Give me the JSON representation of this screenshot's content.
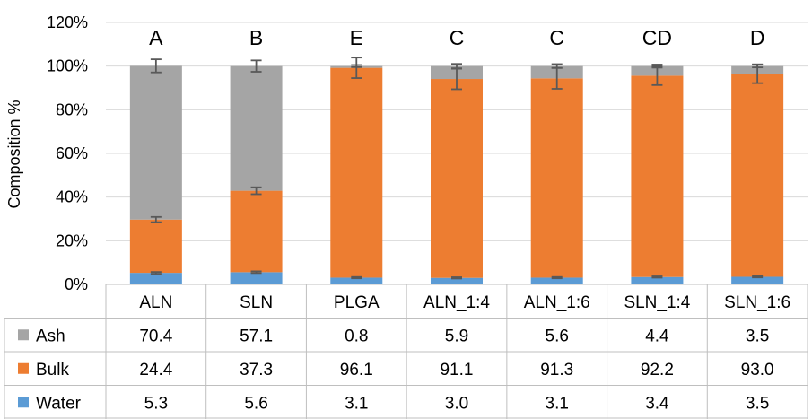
{
  "chart_data": {
    "type": "bar",
    "stacked": true,
    "ylabel": "Composition %",
    "ylim": [
      0,
      120
    ],
    "yticks": [
      "0%",
      "20%",
      "40%",
      "60%",
      "80%",
      "100%",
      "120%"
    ],
    "grid": true,
    "legend_placement": "data-table-left",
    "categories": [
      "ALN",
      "SLN",
      "PLGA",
      "ALN_1:4",
      "ALN_1:6",
      "SLN_1:4",
      "SLN_1:6"
    ],
    "significance_letters": [
      "A",
      "B",
      "E",
      "C",
      "C",
      "CD",
      "D"
    ],
    "series": [
      {
        "name": "Water",
        "color": "#5b9bd5",
        "values": [
          5.3,
          5.6,
          3.1,
          3.0,
          3.1,
          3.4,
          3.5
        ],
        "errors": [
          0.4,
          0.4,
          0.3,
          0.3,
          0.3,
          0.3,
          0.3
        ]
      },
      {
        "name": "Bulk",
        "color": "#ed7d31",
        "values": [
          24.4,
          37.3,
          96.1,
          91.1,
          91.3,
          92.2,
          93.0
        ],
        "errors": [
          1.2,
          1.6,
          4.7,
          4.7,
          4.8,
          4.3,
          4.3
        ]
      },
      {
        "name": "Ash",
        "color": "#a5a5a5",
        "values": [
          70.4,
          57.1,
          0.8,
          5.9,
          5.6,
          4.4,
          3.5
        ],
        "errors": [
          3.0,
          2.6,
          0.5,
          1.0,
          0.9,
          0.7,
          0.6
        ]
      }
    ],
    "table_rows": [
      {
        "name": "Ash",
        "values": [
          "70.4",
          "57.1",
          "0.8",
          "5.9",
          "5.6",
          "4.4",
          "3.5"
        ]
      },
      {
        "name": "Bulk",
        "values": [
          "24.4",
          "37.3",
          "96.1",
          "91.1",
          "91.3",
          "92.2",
          "93.0"
        ]
      },
      {
        "name": "Water",
        "values": [
          "5.3",
          "5.6",
          "3.1",
          "3.0",
          "3.1",
          "3.4",
          "3.5"
        ]
      }
    ]
  }
}
